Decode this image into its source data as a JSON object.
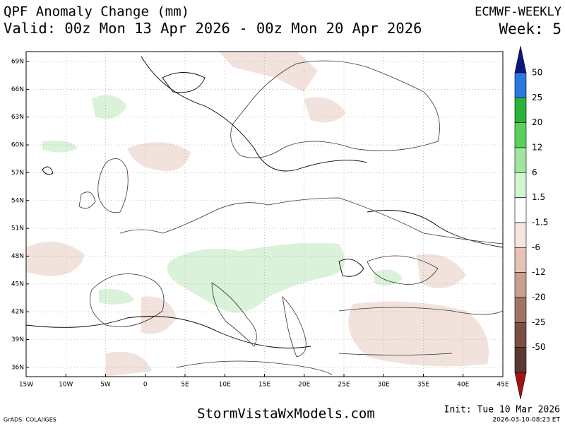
{
  "header": {
    "title": "QPF Anomaly Change (mm)",
    "valid": "Valid: 00z Mon 13 Apr 2026 - 00z Mon 20 Apr 2026",
    "model": "ECMWF-WEEKLY",
    "week": "Week: 5"
  },
  "map": {
    "lat_labels": [
      "69N",
      "66N",
      "63N",
      "60N",
      "57N",
      "54N",
      "51N",
      "48N",
      "45N",
      "42N",
      "39N",
      "36N"
    ],
    "lon_labels": [
      "15W",
      "10W",
      "5W",
      "0",
      "5E",
      "10E",
      "15E",
      "20E",
      "25E",
      "30E",
      "35E",
      "40E",
      "45E"
    ]
  },
  "colorbar": {
    "labels": [
      "50",
      "25",
      "20",
      "12",
      "6",
      "1.5",
      "-1.5",
      "-6",
      "-12",
      "-20",
      "-25",
      "-50"
    ],
    "colors": [
      "#0a1a80",
      "#2a78e0",
      "#28b43c",
      "#5ad25a",
      "#a0e6a0",
      "#d2f5d2",
      "#ffffff",
      "#f5e6e0",
      "#e6c3b4",
      "#c8a08c",
      "#a07464",
      "#7a5044",
      "#5a3a30",
      "#a01414"
    ]
  },
  "footer": {
    "grads": "GrADS: COLA/IGES",
    "site": "StormVistaWxModels.com",
    "init": "Init: Tue 10 Mar 2026",
    "stamp": "2026-03-10-08:23 ET"
  }
}
